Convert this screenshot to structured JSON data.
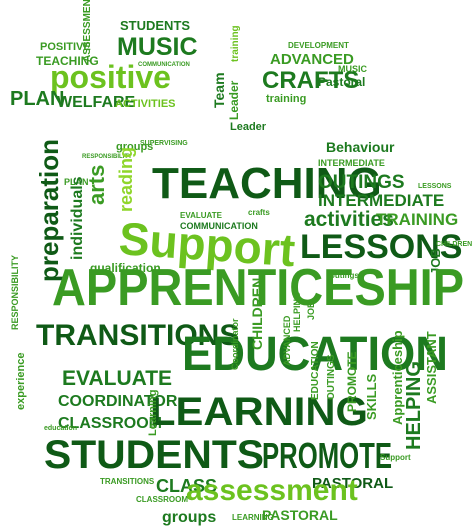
{
  "palette": {
    "dark_green": "#0f5a16",
    "green": "#1d7a1f",
    "mid_green": "#3a9b23",
    "lime": "#6cc21f",
    "light_lime": "#8fd62b"
  },
  "words": {
    "apprenticeship": "APPRENTICESHIP",
    "support": "Support",
    "teaching": "TEACHING",
    "education": "EDUCATION",
    "learning": "LEARNING",
    "students": "STUDENTS",
    "promote": "PROMOTE",
    "lessons": "LESSONS",
    "transitions": "TRANSITIONS",
    "assessment": "assessment",
    "positive": "positive",
    "music": "MUSIC",
    "crafts": "CRAFTS",
    "advanced": "ADVANCED",
    "welfare": "WELFARE",
    "plan": "PLAN",
    "teaching_small": "TEACHING",
    "positive_small": "POSITIVE",
    "assessment_small": "ASSESSMENT",
    "students_small": "STUDENTS",
    "communication": "COMMUNICATION",
    "activities": "ACTIVITIES",
    "development": "DEVELOPMENT",
    "pastoral": "Pastoral",
    "training": "training",
    "team": "Team",
    "leader": "Leader",
    "behaviour": "Behaviour",
    "intermediate": "INTERMEDIATE",
    "outings": "OUTINGS",
    "training_caps": "TRAINING",
    "activities_lower": "activities",
    "evaluate": "EVALUATE",
    "coordinator": "COORDINATOR",
    "classroom": "CLASSROOM",
    "class": "CLASS",
    "groups": "groups",
    "pastoral_caps": "PASTORAL",
    "preparation": "preparation",
    "individuals": "individuals",
    "arts": "arts",
    "reading": "reading",
    "helping": "HELPING",
    "assistant": "ASSISTANT",
    "job": "JOB",
    "qualification": "qualification",
    "responsibility": "RESPONSIBILITY",
    "skills": "SKILLS",
    "children": "CHILDREN",
    "experience": "experience",
    "supervising": "SUPERVISING",
    "crafts_lower": "crafts",
    "apprenticeship_lower": "Apprenticeship",
    "education_lower": "education",
    "coordinator_lower": "Coordinator",
    "outings_lower": "outings",
    "learning_lower": "Learning",
    "support_lower": "Support",
    "lessons_small": "LESSONS"
  }
}
